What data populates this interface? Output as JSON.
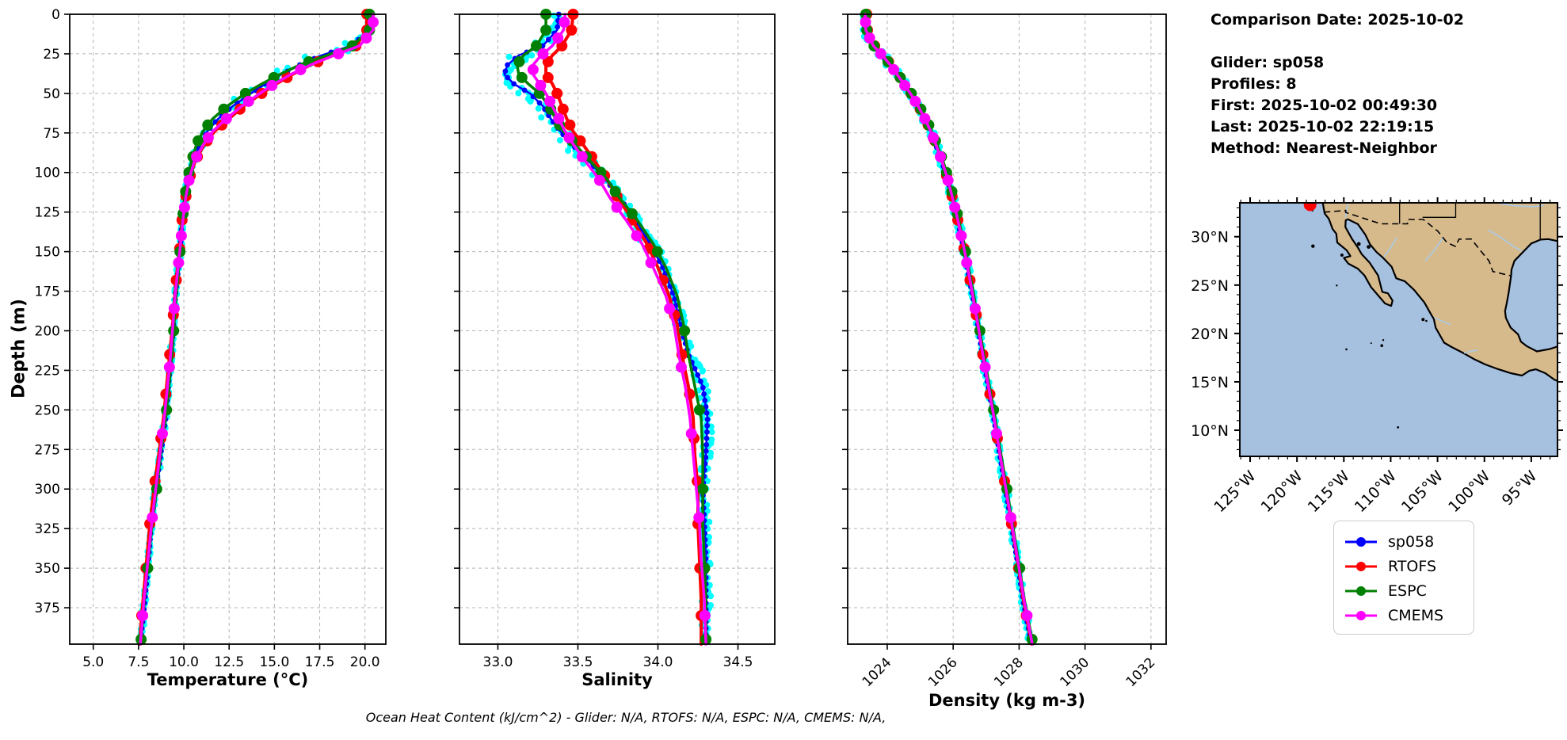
{
  "info_panel": {
    "comparison_date": "Comparison Date: 2025-10-02",
    "glider": "Glider: sp058",
    "profiles": "Profiles: 8",
    "first": "First: 2025-10-02 00:49:30",
    "last": "Last: 2025-10-02 22:19:15",
    "method": "Method: Nearest-Neighbor"
  },
  "footer_note": "Ocean Heat Content (kJ/cm^2) - Glider: N/A,  RTOFS: N/A,  ESPC: N/A,  CMEMS: N/A,",
  "legend": {
    "items": [
      {
        "label": "sp058",
        "color": "#0000ff"
      },
      {
        "label": "RTOFS",
        "color": "#ff0000"
      },
      {
        "label": "ESPC",
        "color": "#008000"
      },
      {
        "label": "CMEMS",
        "color": "#ff00ff"
      }
    ]
  },
  "map": {
    "extent": {
      "lon_min": -126.1,
      "lon_max": -92.2,
      "lat_min": 7.3,
      "lat_max": 33.5
    },
    "lat_ticks": [
      {
        "value": 30,
        "label": "30°N"
      },
      {
        "value": 25,
        "label": "25°N"
      },
      {
        "value": 20,
        "label": "20°N"
      },
      {
        "value": 15,
        "label": "15°N"
      },
      {
        "value": 10,
        "label": "10°N"
      }
    ],
    "lon_ticks": [
      {
        "value": -125,
        "label": "125°W"
      },
      {
        "value": -120,
        "label": "120°W"
      },
      {
        "value": -115,
        "label": "115°W"
      },
      {
        "value": -110,
        "label": "110°W"
      },
      {
        "value": -105,
        "label": "105°W"
      },
      {
        "value": -100,
        "label": "100°W"
      },
      {
        "value": -95,
        "label": "95°W"
      }
    ],
    "glider_marker": {
      "lon": -118.6,
      "lat": 33.3,
      "color": "#ff0000"
    },
    "land_color": "#d7ba8c",
    "ocean_color": "#a6c0df",
    "river_color": "#a9cbe8",
    "coast_color": "#000000"
  },
  "chart_data": [
    {
      "id": "temperature",
      "type": "line",
      "xlabel": "Temperature (°C)",
      "ylabel": "Depth (m)",
      "xlim": [
        3.7,
        21.15
      ],
      "ylim": [
        0,
        398
      ],
      "xticks": [
        5.0,
        7.5,
        10.0,
        12.5,
        15.0,
        17.5,
        20.0
      ],
      "xtick_labels": [
        "5.0",
        "7.5",
        "10.0",
        "12.5",
        "15.0",
        "17.5",
        "20.0"
      ],
      "yticks": [
        0,
        25,
        50,
        75,
        100,
        125,
        150,
        175,
        200,
        225,
        250,
        275,
        300,
        325,
        350,
        375
      ],
      "grid": true,
      "show_ytick_labels": true,
      "rotate_xtick_labels": false,
      "depths": [
        0,
        10,
        20,
        26,
        32,
        38,
        44,
        50,
        58,
        66,
        74,
        82,
        92,
        104,
        116,
        130,
        145,
        160,
        178,
        196,
        215,
        235,
        255,
        278,
        300,
        322,
        345,
        370,
        398
      ],
      "series": [
        {
          "name": "sp058-raw-scatter",
          "type": "jitter_scatter",
          "source": "sp058",
          "color": "#00ffff",
          "step": 3,
          "per_step": 2,
          "radius": 4,
          "base_jitter": 0.07,
          "grad_scale": 2.2
        },
        {
          "name": "sp058",
          "color": "#0000ff",
          "line_width": 2.5,
          "marker_radius": 3.4,
          "marker_step": 4,
          "values": [
            20.3,
            20.3,
            19.2,
            17.6,
            16.4,
            15.4,
            14.5,
            13.7,
            12.7,
            11.9,
            11.3,
            10.9,
            10.5,
            10.25,
            10.05,
            9.9,
            9.82,
            9.7,
            9.53,
            9.43,
            9.3,
            9.15,
            9.0,
            8.73,
            8.45,
            8.2,
            8.05,
            7.85,
            7.6
          ]
        },
        {
          "name": "RTOFS",
          "color": "#ff0000",
          "line_width": 4,
          "marker_radius": 7,
          "marker_depths": [
            0,
            10,
            20,
            30,
            40,
            50,
            60,
            70,
            80,
            90,
            102,
            115,
            130,
            148,
            168,
            190,
            215,
            240,
            268,
            295,
            322,
            350,
            380
          ],
          "values": [
            20.1,
            20.1,
            19.5,
            18.2,
            17.0,
            16.0,
            15.1,
            14.3,
            13.3,
            12.5,
            11.7,
            11.15,
            10.65,
            10.3,
            10.1,
            9.9,
            9.8,
            9.65,
            9.5,
            9.38,
            9.22,
            9.05,
            8.88,
            8.62,
            8.35,
            8.12,
            7.95,
            7.75,
            7.55
          ]
        },
        {
          "name": "ESPC",
          "color": "#008000",
          "line_width": 3.5,
          "marker_radius": 7,
          "marker_depths": [
            0,
            10,
            20,
            30,
            40,
            50,
            60,
            70,
            80,
            90,
            100,
            112,
            126,
            150,
            200,
            250,
            300,
            350,
            395
          ],
          "values": [
            20.25,
            20.25,
            19.3,
            17.9,
            16.4,
            15.3,
            14.3,
            13.4,
            12.4,
            11.6,
            11.05,
            10.7,
            10.45,
            10.2,
            10.05,
            9.92,
            9.82,
            9.72,
            9.58,
            9.46,
            9.35,
            9.18,
            9.0,
            8.72,
            8.5,
            8.25,
            8.05,
            7.82,
            7.62
          ]
        },
        {
          "name": "CMEMS",
          "color": "#ff00ff",
          "line_width": 3.5,
          "marker_radius": 7,
          "marker_depths": [
            5,
            15,
            25,
            35,
            45,
            55,
            66,
            78,
            90,
            105,
            122,
            140,
            157,
            186,
            223,
            265,
            318,
            380
          ],
          "values": [
            20.45,
            20.45,
            19.7,
            18.3,
            17.0,
            15.9,
            15.0,
            14.2,
            13.2,
            12.35,
            11.6,
            11.1,
            10.6,
            10.3,
            10.1,
            9.95,
            9.82,
            9.68,
            9.52,
            9.4,
            9.27,
            9.1,
            8.92,
            8.68,
            8.45,
            8.22,
            8.02,
            7.8,
            7.6
          ]
        }
      ]
    },
    {
      "id": "salinity",
      "type": "line",
      "xlabel": "Salinity",
      "ylabel": "Depth (m)",
      "xlim": [
        32.76,
        34.73
      ],
      "ylim": [
        0,
        398
      ],
      "xticks": [
        33.0,
        33.5,
        34.0,
        34.5
      ],
      "xtick_labels": [
        "33.0",
        "33.5",
        "34.0",
        "34.5"
      ],
      "yticks": [
        0,
        25,
        50,
        75,
        100,
        125,
        150,
        175,
        200,
        225,
        250,
        275,
        300,
        325,
        350,
        375
      ],
      "grid": true,
      "show_ytick_labels": false,
      "rotate_xtick_labels": false,
      "depths": [
        0,
        10,
        20,
        26,
        32,
        38,
        44,
        50,
        58,
        66,
        74,
        82,
        92,
        104,
        116,
        130,
        145,
        160,
        178,
        196,
        215,
        235,
        255,
        278,
        300,
        322,
        345,
        370,
        398
      ],
      "series": [
        {
          "name": "sp058-raw-scatter",
          "type": "jitter_scatter",
          "source": "sp058",
          "color": "#00ffff",
          "step": 3,
          "per_step": 2,
          "radius": 4,
          "base_jitter": 0.03,
          "grad_scale": 3.0
        },
        {
          "name": "sp058",
          "color": "#0000ff",
          "line_width": 2.5,
          "marker_radius": 3.4,
          "marker_step": 4,
          "values": [
            33.38,
            33.37,
            33.28,
            33.13,
            33.06,
            33.04,
            33.1,
            33.2,
            33.28,
            33.33,
            33.39,
            33.46,
            33.56,
            33.67,
            33.76,
            33.86,
            33.95,
            34.03,
            34.1,
            34.14,
            34.19,
            34.28,
            34.31,
            34.3,
            34.28,
            34.29,
            34.3,
            34.3,
            34.3
          ]
        },
        {
          "name": "RTOFS",
          "color": "#ff0000",
          "line_width": 4,
          "marker_radius": 7,
          "marker_depths": [
            0,
            10,
            20,
            30,
            40,
            50,
            60,
            70,
            80,
            90,
            102,
            115,
            130,
            148,
            168,
            190,
            215,
            240,
            268,
            295,
            322,
            350,
            380
          ],
          "values": [
            33.47,
            33.46,
            33.4,
            33.34,
            33.3,
            33.3,
            33.34,
            33.37,
            33.4,
            33.43,
            33.47,
            33.53,
            33.6,
            33.68,
            33.75,
            33.84,
            33.93,
            34.0,
            34.07,
            34.12,
            34.15,
            34.19,
            34.22,
            34.23,
            34.25,
            34.25,
            34.26,
            34.27,
            34.27
          ]
        },
        {
          "name": "ESPC",
          "color": "#008000",
          "line_width": 3.5,
          "marker_radius": 7,
          "marker_depths": [
            0,
            10,
            20,
            30,
            40,
            50,
            60,
            70,
            80,
            90,
            100,
            112,
            126,
            150,
            200,
            250,
            300,
            350,
            395
          ],
          "values": [
            33.3,
            33.3,
            33.24,
            33.16,
            33.12,
            33.13,
            33.19,
            33.26,
            33.32,
            33.36,
            33.41,
            33.48,
            33.57,
            33.68,
            33.76,
            33.87,
            33.97,
            34.05,
            34.12,
            34.16,
            34.19,
            34.23,
            34.27,
            34.28,
            34.28,
            34.28,
            34.29,
            34.3,
            34.3
          ]
        },
        {
          "name": "CMEMS",
          "color": "#ff00ff",
          "line_width": 3.5,
          "marker_radius": 7,
          "marker_depths": [
            5,
            15,
            25,
            35,
            45,
            55,
            66,
            78,
            90,
            105,
            122,
            140,
            157,
            186,
            223,
            265,
            318,
            380
          ],
          "values": [
            33.42,
            33.41,
            33.34,
            33.27,
            33.22,
            33.22,
            33.26,
            33.3,
            33.34,
            33.38,
            33.42,
            33.47,
            33.54,
            33.63,
            33.7,
            33.8,
            33.9,
            33.97,
            34.05,
            34.1,
            34.13,
            34.17,
            34.2,
            34.22,
            34.24,
            34.26,
            34.27,
            34.29,
            34.3
          ]
        }
      ]
    },
    {
      "id": "density",
      "type": "line",
      "xlabel": "Density (kg m-3)",
      "ylabel": "Depth (m)",
      "xlim": [
        1022.8,
        1032.46
      ],
      "ylim": [
        0,
        398
      ],
      "xticks": [
        1024,
        1026,
        1028,
        1030,
        1032
      ],
      "xtick_labels": [
        "1024",
        "1026",
        "1028",
        "1030",
        "1032"
      ],
      "yticks": [
        0,
        25,
        50,
        75,
        100,
        125,
        150,
        175,
        200,
        225,
        250,
        275,
        300,
        325,
        350,
        375
      ],
      "grid": true,
      "show_ytick_labels": false,
      "rotate_xtick_labels": true,
      "depths": [
        0,
        10,
        20,
        26,
        32,
        38,
        44,
        50,
        58,
        66,
        74,
        82,
        92,
        104,
        116,
        130,
        145,
        160,
        178,
        196,
        215,
        235,
        255,
        278,
        300,
        322,
        345,
        370,
        398
      ],
      "series": [
        {
          "name": "sp058-raw-scatter",
          "type": "jitter_scatter",
          "source": "sp058",
          "color": "#00ffff",
          "step": 3,
          "per_step": 2,
          "radius": 4,
          "base_jitter": 0.07,
          "grad_scale": 1.5
        },
        {
          "name": "sp058",
          "color": "#0000ff",
          "line_width": 2.5,
          "marker_radius": 3.4,
          "marker_step": 4,
          "values": [
            1023.3,
            1023.32,
            1023.55,
            1023.83,
            1024.08,
            1024.3,
            1024.5,
            1024.7,
            1024.93,
            1025.13,
            1025.31,
            1025.46,
            1025.64,
            1025.82,
            1025.97,
            1026.13,
            1026.29,
            1026.43,
            1026.59,
            1026.74,
            1026.89,
            1027.06,
            1027.23,
            1027.41,
            1027.59,
            1027.76,
            1027.94,
            1028.12,
            1028.37
          ]
        },
        {
          "name": "RTOFS",
          "color": "#ff0000",
          "line_width": 4,
          "marker_radius": 7,
          "marker_depths": [
            0,
            10,
            20,
            30,
            40,
            50,
            60,
            70,
            80,
            90,
            102,
            115,
            130,
            148,
            168,
            190,
            215,
            240,
            268,
            295,
            322,
            350,
            380
          ],
          "values": [
            1023.38,
            1023.4,
            1023.62,
            1023.88,
            1024.12,
            1024.33,
            1024.52,
            1024.72,
            1024.95,
            1025.15,
            1025.33,
            1025.48,
            1025.65,
            1025.83,
            1025.98,
            1026.14,
            1026.3,
            1026.44,
            1026.6,
            1026.75,
            1026.9,
            1027.07,
            1027.24,
            1027.42,
            1027.6,
            1027.77,
            1027.95,
            1028.13,
            1028.38
          ]
        },
        {
          "name": "ESPC",
          "color": "#008000",
          "line_width": 3.5,
          "marker_radius": 7,
          "marker_depths": [
            0,
            10,
            20,
            30,
            40,
            50,
            60,
            70,
            80,
            90,
            100,
            112,
            126,
            150,
            200,
            250,
            300,
            350,
            395
          ],
          "values": [
            1023.35,
            1023.38,
            1023.6,
            1023.87,
            1024.1,
            1024.33,
            1024.53,
            1024.73,
            1024.97,
            1025.17,
            1025.35,
            1025.5,
            1025.68,
            1025.86,
            1026.01,
            1026.17,
            1026.33,
            1026.47,
            1026.63,
            1026.78,
            1026.93,
            1027.1,
            1027.27,
            1027.45,
            1027.63,
            1027.8,
            1027.98,
            1028.16,
            1028.42
          ]
        },
        {
          "name": "CMEMS",
          "color": "#ff00ff",
          "line_width": 3.5,
          "marker_radius": 7,
          "marker_depths": [
            5,
            15,
            25,
            35,
            45,
            55,
            66,
            78,
            90,
            105,
            122,
            140,
            157,
            186,
            223,
            265,
            318,
            380
          ],
          "values": [
            1023.33,
            1023.35,
            1023.58,
            1023.85,
            1024.09,
            1024.3,
            1024.5,
            1024.7,
            1024.94,
            1025.14,
            1025.32,
            1025.47,
            1025.65,
            1025.83,
            1025.98,
            1026.14,
            1026.3,
            1026.44,
            1026.6,
            1026.75,
            1026.9,
            1027.07,
            1027.24,
            1027.42,
            1027.6,
            1027.78,
            1027.96,
            1028.15,
            1028.4
          ]
        }
      ]
    }
  ]
}
